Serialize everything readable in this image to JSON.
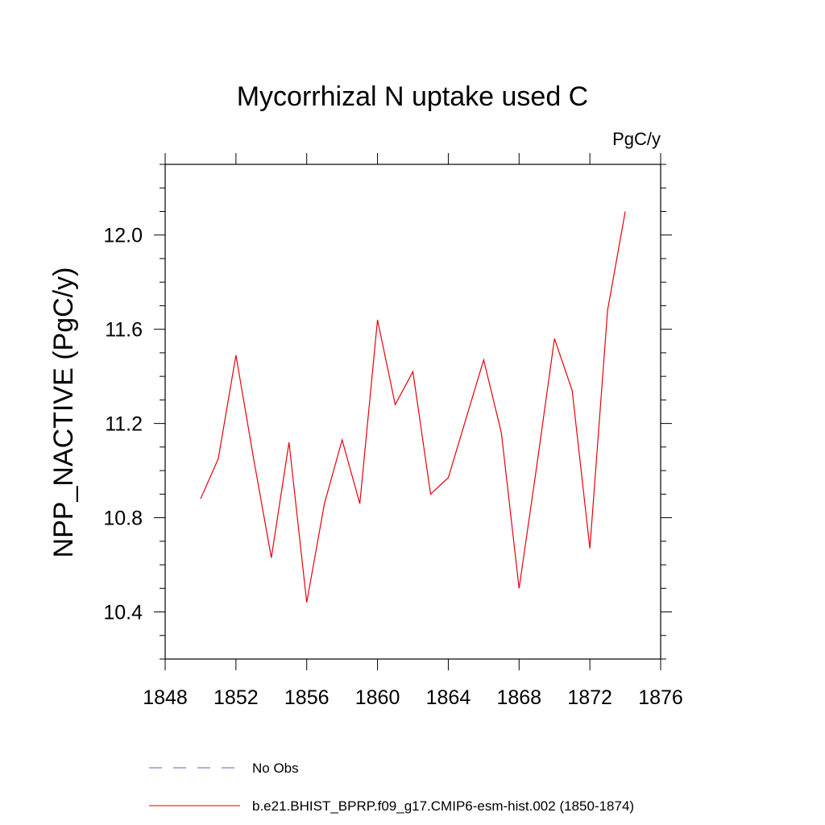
{
  "chart_data": {
    "type": "line",
    "title": "Mycorrhizal N uptake used C",
    "units": "PgC/y",
    "ylabel": "NPP_NACTIVE  (PgC/y)",
    "xlabel": "",
    "xlim": [
      1848,
      1876
    ],
    "ylim": [
      10.2,
      12.3
    ],
    "x_ticks": [
      1848,
      1852,
      1856,
      1860,
      1864,
      1868,
      1872,
      1876
    ],
    "y_ticks": [
      10.4,
      10.8,
      11.2,
      11.6,
      12.0
    ],
    "x_tick_labels": [
      "1848",
      "1852",
      "1856",
      "1860",
      "1864",
      "1868",
      "1872",
      "1876"
    ],
    "y_tick_labels": [
      "10.4",
      "10.8",
      "11.2",
      "11.6",
      "12.0"
    ],
    "grid": false,
    "legend_position": "bottom",
    "series": [
      {
        "name": "b.e21.BHIST_BPRP.f09_g17.CMIP6-esm-hist.002 (1850-1874)",
        "color": "#e8000b",
        "style": "solid",
        "x": [
          1850,
          1851,
          1852,
          1853,
          1854,
          1855,
          1856,
          1857,
          1858,
          1859,
          1860,
          1861,
          1862,
          1863,
          1864,
          1865,
          1866,
          1867,
          1868,
          1869,
          1870,
          1871,
          1872,
          1873,
          1874
        ],
        "y": [
          10.88,
          11.05,
          11.49,
          11.05,
          10.63,
          11.12,
          10.44,
          10.86,
          11.13,
          10.86,
          11.64,
          11.28,
          11.42,
          10.9,
          10.97,
          11.22,
          11.47,
          11.16,
          10.5,
          11.02,
          11.56,
          11.34,
          10.67,
          11.68,
          12.1
        ]
      }
    ],
    "legend": [
      {
        "label": "No Obs",
        "color": "#6a5acd",
        "style": "dashed"
      },
      {
        "label": "b.e21.BHIST_BPRP.f09_g17.CMIP6-esm-hist.002 (1850-1874)",
        "color": "#e8000b",
        "style": "solid"
      }
    ]
  }
}
